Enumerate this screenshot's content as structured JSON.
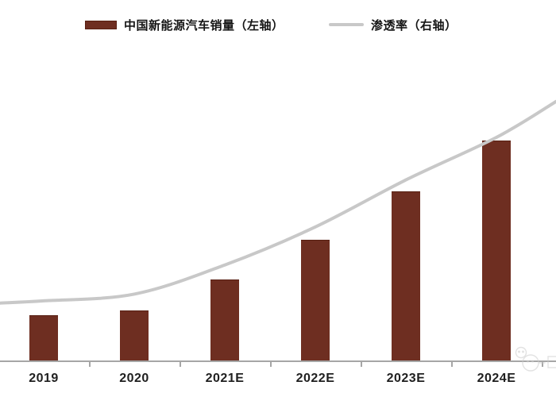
{
  "legend": {
    "items": [
      {
        "label": "中国新能源汽车销量（左轴）",
        "swatch": "bar",
        "color": "#6E2E21"
      },
      {
        "label": "渗透率（右轴）",
        "swatch": "line",
        "color": "#C8C8C8"
      }
    ]
  },
  "chart_data": {
    "type": "combo",
    "categories": [
      "2019",
      "2020",
      "2021E",
      "2022E",
      "2023E",
      "2024E"
    ],
    "series": [
      {
        "name": "中国新能源汽车销量（左轴）",
        "kind": "bar",
        "axis": "left",
        "color": "#6E2E21",
        "values": [
          21,
          23,
          37,
          55,
          77,
          100
        ]
      },
      {
        "name": "渗透率（右轴）",
        "kind": "line",
        "axis": "right",
        "color": "#C8C8C8",
        "values": [
          27,
          30,
          43,
          60,
          81,
          100
        ],
        "edge_values": {
          "left_chart_edge": 26,
          "right_chart_edge": 116
        }
      }
    ],
    "value_note": "left/right y-axis tick labels are cropped out of the visible image; values are relative estimates scaled so that 2024E = 100",
    "title": "",
    "xlabel": "",
    "ylabel_left": "",
    "ylabel_right": "",
    "legend_position": "top",
    "grid": false,
    "x_tick_marks_between_categories": true
  },
  "colors": {
    "bar": "#6E2E21",
    "bar_border": "#571F12",
    "line": "#C8C8C8",
    "axis": "#A6A6A6",
    "label_text": "#1F1F1F",
    "watermark": "#CCCCCC"
  },
  "watermark": {
    "description": "faint partially-cropped circular logo at bottom-right"
  }
}
